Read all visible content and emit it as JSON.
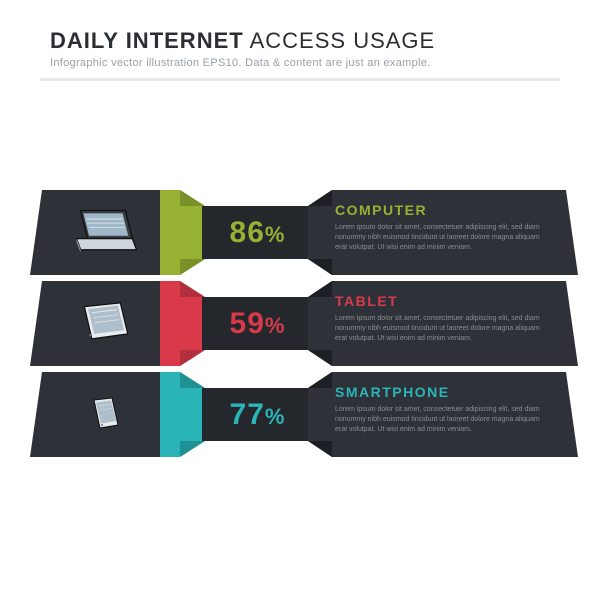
{
  "header": {
    "title_bold": "DAILY INTERNET",
    "title_light": "ACCESS USAGE",
    "subtitle": "Infographic vector illustration EPS10. Data & content are just an example.",
    "title_color": "#2b2f33",
    "subtitle_color": "#9aa0a6",
    "divider_color": "#e8e8e6"
  },
  "panel_dark": "#2e3238",
  "panel_dark_shade": "#24272c",
  "body_text_color": "#8a8e92",
  "rows": [
    {
      "id": "computer",
      "icon": "laptop",
      "accent": "#97b232",
      "accent_shade": "#7a9028",
      "value": "86",
      "pct": "%",
      "label": "COMPUTER",
      "body": "Lorem ipsum dolor sit amet, consectetuer adipiscing elit, sed diam nonummy nibh euismod tincidunt ut laoreet dolore magna aliquam erat volutpat. Ut wisi enim ad minim veniam."
    },
    {
      "id": "tablet",
      "icon": "tablet",
      "accent": "#d93a4a",
      "accent_shade": "#b22f3d",
      "value": "59",
      "pct": "%",
      "label": "TABLET",
      "body": "Lorem ipsum dolor sit amet, consectetuer adipiscing elit, sed diam nonummy nibh euismod tincidunt ut laoreet dolore magna aliquam erat volutpat. Ut wisi enim ad minim veniam."
    },
    {
      "id": "smartphone",
      "icon": "phone",
      "accent": "#2bb4b8",
      "accent_shade": "#1f9093",
      "value": "77",
      "pct": "%",
      "label": "SMARTPHONE",
      "body": "Lorem ipsum dolor sit amet, consectetuer adipiscing elit, sed diam nonummy nibh euismod tincidunt ut laoreet dolore magna aliquam erat volutpat. Ut wisi enim ad minim veniam."
    }
  ]
}
